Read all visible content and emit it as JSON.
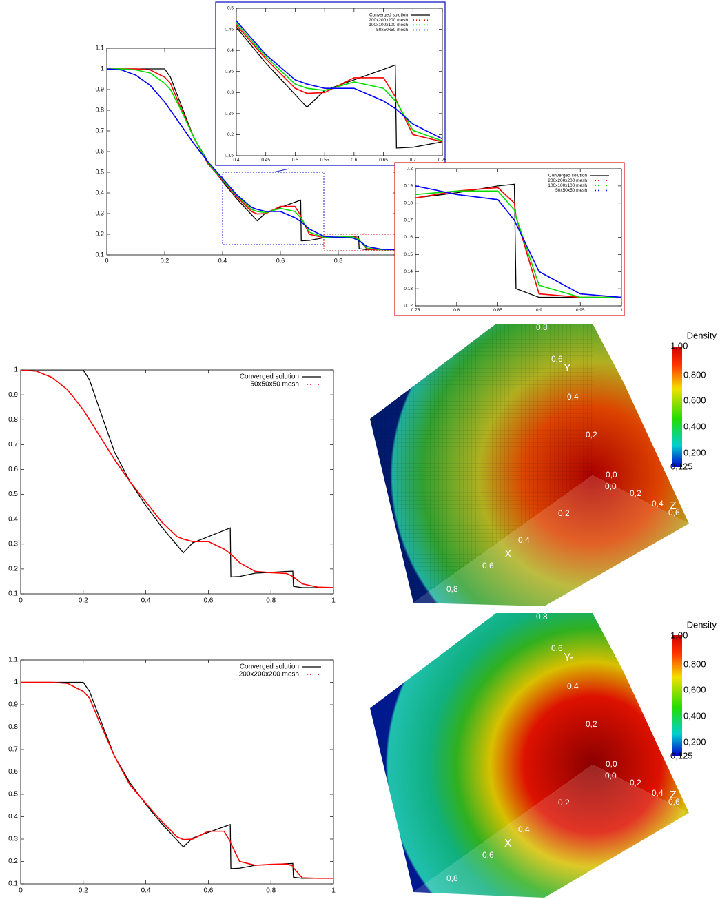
{
  "chart_data": [
    {
      "type": "line",
      "xlim": [
        0,
        1
      ],
      "ylim": [
        0.1,
        1.1
      ],
      "xticks": [
        0,
        0.2,
        0.4,
        0.6,
        0.8,
        1
      ],
      "yticks": [
        0.1,
        0.2,
        0.3,
        0.4,
        0.5,
        0.6,
        0.7,
        0.8,
        0.9,
        1,
        1.1
      ],
      "x": [
        0,
        0.05,
        0.1,
        0.15,
        0.2,
        0.22,
        0.25,
        0.3,
        0.35,
        0.4,
        0.45,
        0.5,
        0.52,
        0.55,
        0.6,
        0.65,
        0.67,
        0.672,
        0.7,
        0.75,
        0.8,
        0.85,
        0.87,
        0.872,
        0.9,
        0.95,
        1
      ],
      "series": [
        {
          "name": "Converged solution",
          "color": "#000000",
          "values": [
            1,
            1,
            1,
            1,
            1,
            0.96,
            0.85,
            0.67,
            0.55,
            0.455,
            0.37,
            0.295,
            0.265,
            0.305,
            0.33,
            0.355,
            0.365,
            0.168,
            0.17,
            0.183,
            0.186,
            0.19,
            0.191,
            0.13,
            0.125,
            0.125,
            0.125
          ]
        },
        {
          "name": "200x200x200 mesh",
          "color": "#ff0000",
          "values": [
            1,
            1,
            1,
            0.995,
            0.96,
            0.93,
            0.83,
            0.67,
            0.54,
            0.46,
            0.38,
            0.31,
            0.298,
            0.3,
            0.335,
            0.335,
            0.29,
            0.28,
            0.2,
            0.183,
            0.187,
            0.189,
            0.18,
            0.172,
            0.127,
            0.125,
            0.125
          ]
        },
        {
          "name": "100x100x100 mesh",
          "color": "#00dd00",
          "values": [
            1,
            1,
            0.995,
            0.98,
            0.93,
            0.9,
            0.82,
            0.67,
            0.545,
            0.465,
            0.385,
            0.32,
            0.31,
            0.305,
            0.325,
            0.31,
            0.28,
            0.278,
            0.21,
            0.185,
            0.187,
            0.187,
            0.176,
            0.172,
            0.132,
            0.125,
            0.125
          ]
        },
        {
          "name": "50x50x50 mesh",
          "color": "#0000ff",
          "values": [
            1,
            0.995,
            0.97,
            0.92,
            0.84,
            0.8,
            0.74,
            0.64,
            0.55,
            0.47,
            0.39,
            0.33,
            0.32,
            0.31,
            0.31,
            0.28,
            0.262,
            0.26,
            0.225,
            0.19,
            0.185,
            0.182,
            0.17,
            0.168,
            0.14,
            0.127,
            0.125
          ]
        }
      ],
      "insets": [
        {
          "xlim": [
            0.4,
            0.75
          ],
          "ylim": [
            0.15,
            0.5
          ],
          "xticks": [
            0.4,
            0.45,
            0.5,
            0.55,
            0.6,
            0.65,
            0.7,
            0.75
          ],
          "yticks": [
            0.15,
            0.2,
            0.25,
            0.3,
            0.35,
            0.4,
            0.45,
            0.5
          ],
          "color": "#1a1acc",
          "legend": "upper right"
        },
        {
          "xlim": [
            0.75,
            1
          ],
          "ylim": [
            0.12,
            0.2
          ],
          "xticks": [
            0.75,
            0.8,
            0.85,
            0.9,
            0.95,
            1
          ],
          "yticks": [
            0.12,
            0.13,
            0.14,
            0.15,
            0.16,
            0.17,
            0.18,
            0.19,
            0.2
          ],
          "color": "#dd2222",
          "legend": "upper right"
        }
      ]
    },
    {
      "type": "line",
      "xlim": [
        0,
        1
      ],
      "ylim": [
        0.1,
        1
      ],
      "xticks": [
        0,
        0.2,
        0.4,
        0.6,
        0.8,
        1
      ],
      "yticks": [
        0.1,
        0.2,
        0.3,
        0.4,
        0.5,
        0.6,
        0.7,
        0.8,
        0.9,
        1
      ],
      "legend": "upper right",
      "x": [
        0,
        0.05,
        0.1,
        0.15,
        0.2,
        0.22,
        0.25,
        0.3,
        0.35,
        0.4,
        0.45,
        0.5,
        0.52,
        0.55,
        0.6,
        0.65,
        0.67,
        0.672,
        0.7,
        0.75,
        0.8,
        0.85,
        0.87,
        0.872,
        0.9,
        0.95,
        1
      ],
      "series": [
        {
          "name": "Converged solution",
          "color": "#000000",
          "values": [
            1,
            1,
            1,
            1,
            1,
            0.96,
            0.85,
            0.67,
            0.55,
            0.455,
            0.37,
            0.295,
            0.265,
            0.305,
            0.33,
            0.355,
            0.365,
            0.168,
            0.17,
            0.183,
            0.186,
            0.19,
            0.191,
            0.13,
            0.125,
            0.125,
            0.125
          ]
        },
        {
          "name": "50x50x50 mesh",
          "color": "#ff0000",
          "values": [
            1,
            0.995,
            0.97,
            0.92,
            0.84,
            0.8,
            0.74,
            0.64,
            0.55,
            0.47,
            0.39,
            0.33,
            0.32,
            0.31,
            0.31,
            0.28,
            0.262,
            0.26,
            0.225,
            0.19,
            0.185,
            0.182,
            0.17,
            0.168,
            0.14,
            0.127,
            0.125
          ]
        }
      ]
    },
    {
      "type": "line",
      "xlim": [
        0,
        1
      ],
      "ylim": [
        0.1,
        1.1
      ],
      "xticks": [
        0,
        0.2,
        0.4,
        0.6,
        0.8,
        1
      ],
      "yticks": [
        0.1,
        0.2,
        0.3,
        0.4,
        0.5,
        0.6,
        0.7,
        0.8,
        0.9,
        1,
        1.1
      ],
      "legend": "upper right",
      "x": [
        0,
        0.05,
        0.1,
        0.15,
        0.2,
        0.22,
        0.25,
        0.3,
        0.35,
        0.4,
        0.45,
        0.5,
        0.52,
        0.55,
        0.6,
        0.65,
        0.67,
        0.672,
        0.7,
        0.75,
        0.8,
        0.85,
        0.87,
        0.872,
        0.9,
        0.95,
        1
      ],
      "series": [
        {
          "name": "Converged solution",
          "color": "#000000",
          "values": [
            1,
            1,
            1,
            1,
            1,
            0.96,
            0.85,
            0.67,
            0.55,
            0.455,
            0.37,
            0.295,
            0.265,
            0.305,
            0.33,
            0.355,
            0.365,
            0.168,
            0.17,
            0.183,
            0.186,
            0.19,
            0.191,
            0.13,
            0.125,
            0.125,
            0.125
          ]
        },
        {
          "name": "200x200x200 mesh",
          "color": "#ff0000",
          "values": [
            1,
            1,
            1,
            0.995,
            0.96,
            0.93,
            0.83,
            0.67,
            0.54,
            0.46,
            0.38,
            0.31,
            0.298,
            0.3,
            0.335,
            0.335,
            0.29,
            0.28,
            0.2,
            0.183,
            0.187,
            0.189,
            0.18,
            0.172,
            0.127,
            0.125,
            0.125
          ]
        }
      ]
    }
  ],
  "renders": [
    {
      "colorbar_title": "Density",
      "colorbar_labels": [
        "1,00",
        "0,800",
        "0,600",
        "0,400",
        "0,200",
        "0,125"
      ],
      "axis_labels": [
        "0,8",
        "0,6",
        "Y",
        "0,4",
        "0,2",
        "0,0",
        "0,0",
        "0,2",
        "0,4",
        "Z",
        "0,6",
        "0,2",
        "0,4",
        "X",
        "0,6",
        "0,8"
      ]
    },
    {
      "colorbar_title": "Density",
      "colorbar_labels": [
        "1,00",
        "0,800",
        "0,600",
        "0,400",
        "0,200",
        "0,125"
      ],
      "axis_labels": [
        "0,8",
        "0,6",
        "Y-",
        "0,4",
        "0,2",
        "0,0",
        "0,0",
        "0,2",
        "0,4",
        "Z",
        "0,6",
        "0,2",
        "0,4",
        "X",
        "0,6",
        "0,8"
      ]
    }
  ]
}
